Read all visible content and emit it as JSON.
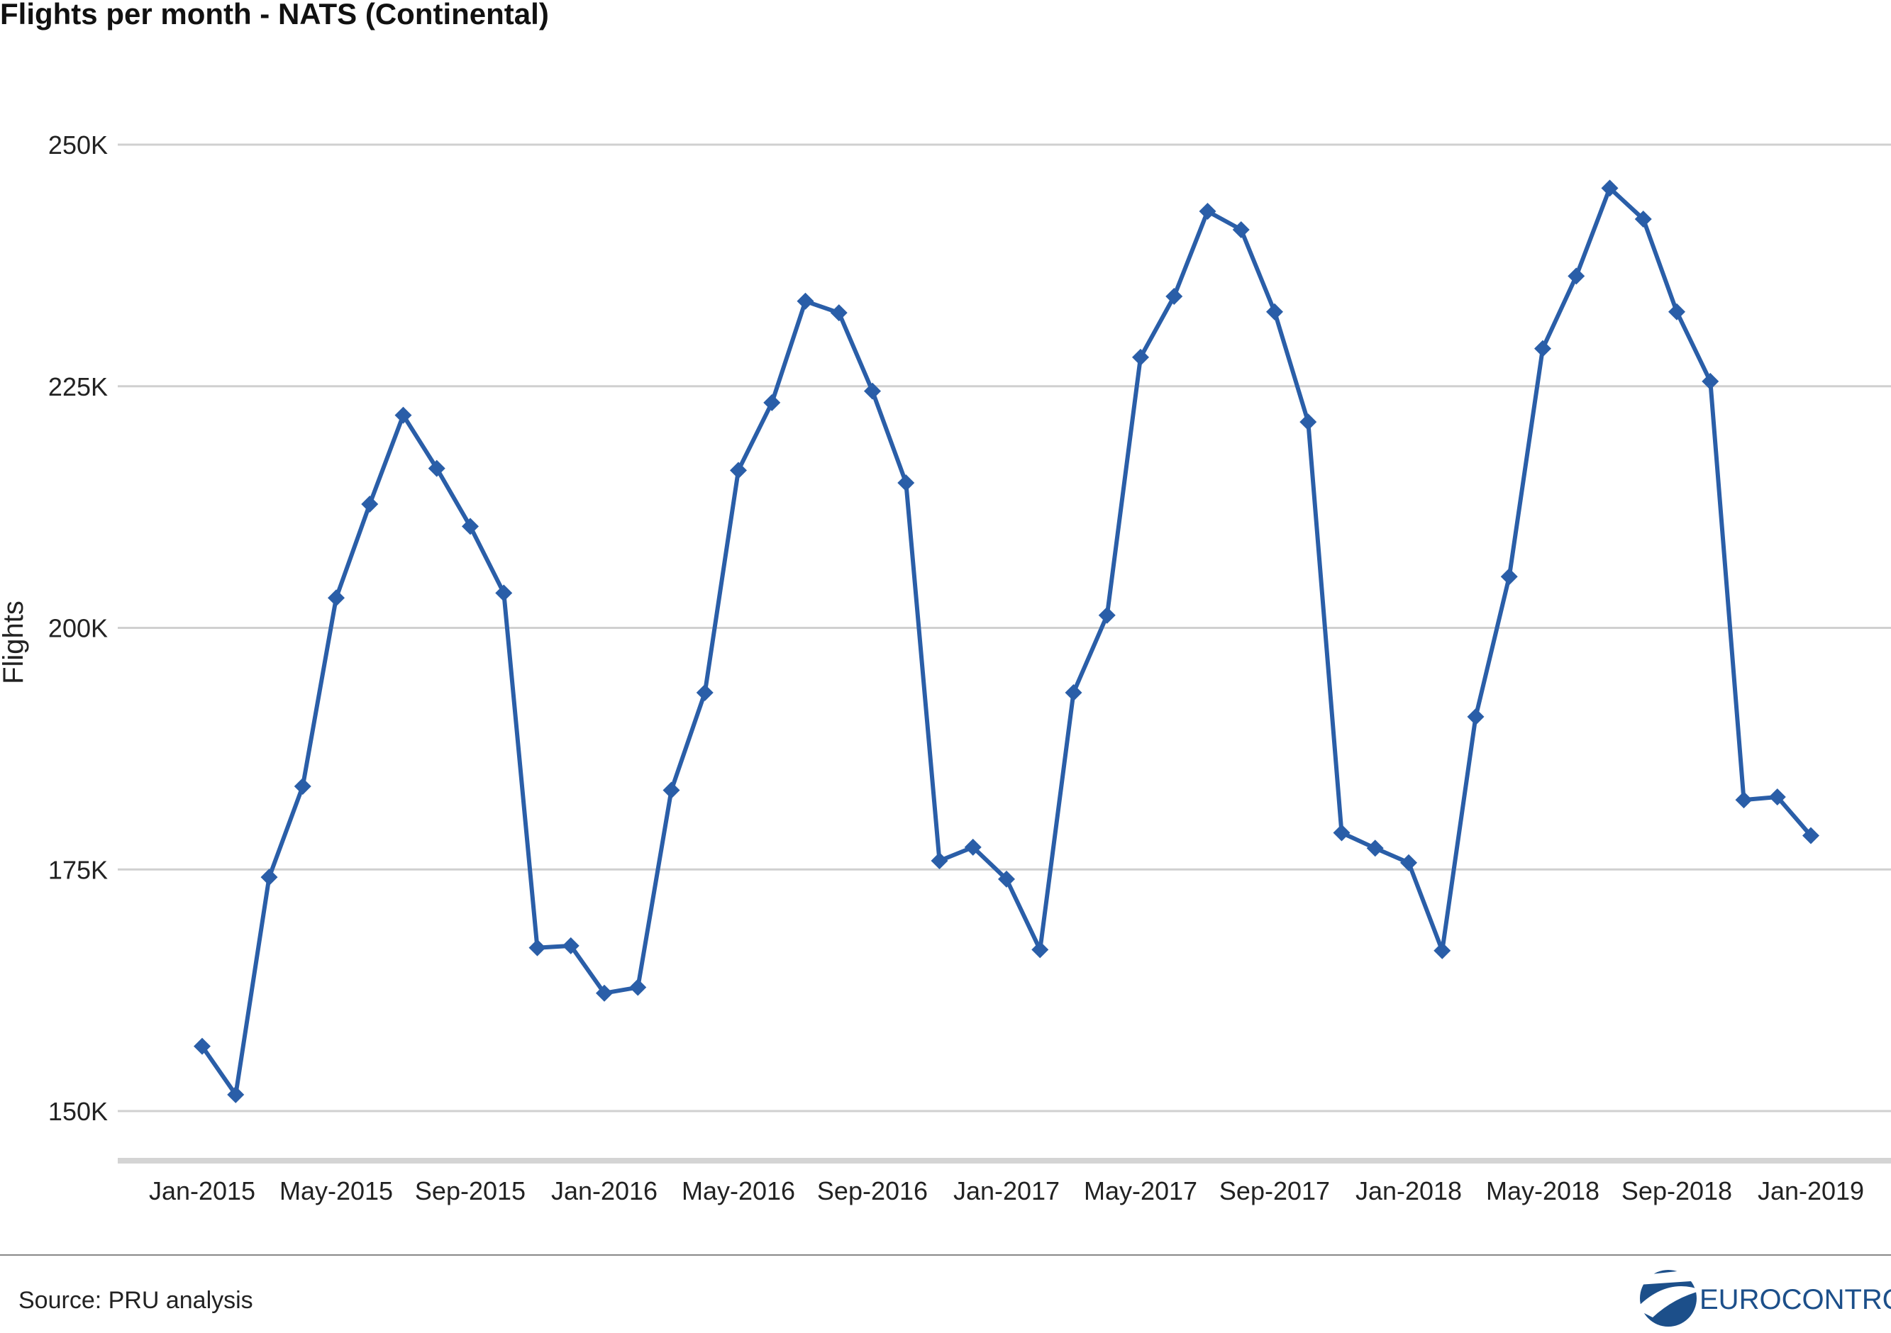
{
  "chart_data": {
    "type": "line",
    "title": "Flights per month - NATS (Continental)",
    "ylabel": "Flights",
    "xlabel": "",
    "ylim": [
      150000,
      250000
    ],
    "yticks": [
      {
        "value": 150000,
        "label": "150K"
      },
      {
        "value": 175000,
        "label": "175K"
      },
      {
        "value": 200000,
        "label": "200K"
      },
      {
        "value": 225000,
        "label": "225K"
      },
      {
        "value": 250000,
        "label": "250K"
      }
    ],
    "xticks": [
      {
        "index": 0,
        "label": "Jan-2015"
      },
      {
        "index": 4,
        "label": "May-2015"
      },
      {
        "index": 8,
        "label": "Sep-2015"
      },
      {
        "index": 12,
        "label": "Jan-2016"
      },
      {
        "index": 16,
        "label": "May-2016"
      },
      {
        "index": 20,
        "label": "Sep-2016"
      },
      {
        "index": 24,
        "label": "Jan-2017"
      },
      {
        "index": 28,
        "label": "May-2017"
      },
      {
        "index": 32,
        "label": "Sep-2017"
      },
      {
        "index": 36,
        "label": "Jan-2018"
      },
      {
        "index": 40,
        "label": "May-2018"
      },
      {
        "index": 44,
        "label": "Sep-2018"
      },
      {
        "index": 48,
        "label": "Jan-2019"
      }
    ],
    "grid": true,
    "series": [
      {
        "color": "#2a5ea8",
        "marker": "diamond",
        "values": [
          156700,
          151700,
          174200,
          183600,
          203100,
          212800,
          222000,
          216500,
          210500,
          203600,
          166900,
          167100,
          162200,
          162800,
          183200,
          193300,
          216300,
          223300,
          233800,
          232600,
          224500,
          215000,
          175900,
          177300,
          174000,
          166700,
          193300,
          201300,
          228000,
          234300,
          243100,
          241200,
          232700,
          221300,
          178800,
          177200,
          175700,
          166600,
          190800,
          205300,
          228900,
          236400,
          245500,
          242300,
          232700,
          225500,
          182200,
          182500,
          178500
        ]
      }
    ]
  },
  "source_label": "Source: PRU analysis",
  "logo": {
    "text": "EUROCONTROL",
    "color": "#1c4f8a"
  }
}
